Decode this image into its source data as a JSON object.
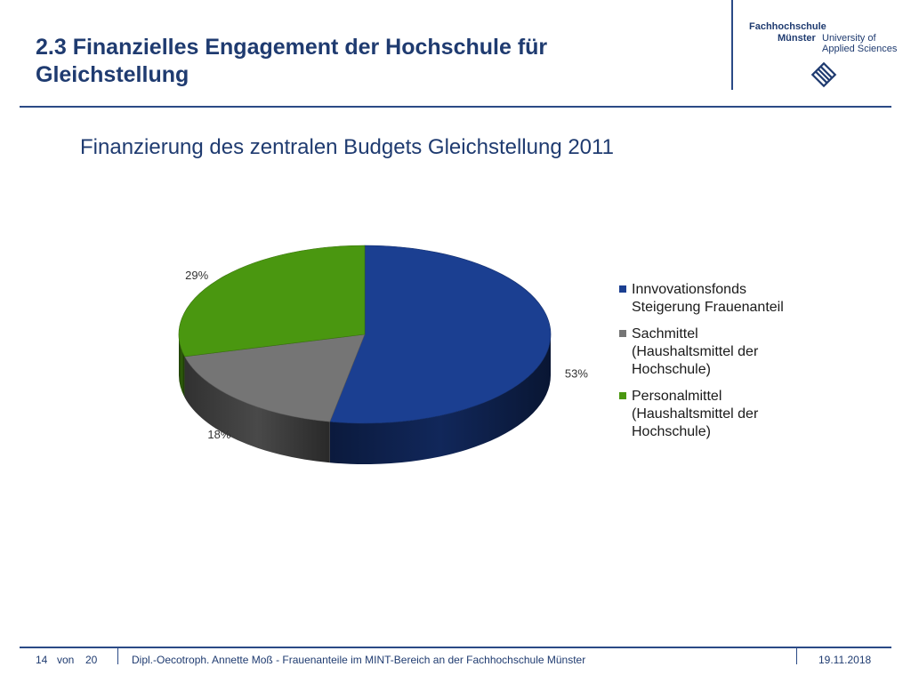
{
  "slide": {
    "title": "2.3 Finanzielles Engagement der Hochschule für Gleichstellung"
  },
  "logo": {
    "line1": "Fachhochschule",
    "line2_left": "Münster",
    "line2_right": "University of",
    "line3": "Applied Sciences",
    "icon": "fh-muenster-logo-icon"
  },
  "colors": {
    "brand_blue": "#1f3b70",
    "innovation": "#1b3f91",
    "sach": "#757575",
    "personal": "#4a9710"
  },
  "chart_data": {
    "type": "pie",
    "title": "Finanzierung des zentralen Budgets Gleichstellung 2011",
    "legend_position": "right",
    "slices": [
      {
        "label": "Innvovationsfonds Steigerung Frauenanteil",
        "value": 53,
        "value_label": "53%",
        "color": "#1b3f91"
      },
      {
        "label": "Sachmittel (Haushaltsmittel der Hochschule)",
        "value": 18,
        "value_label": "18%",
        "color": "#757575"
      },
      {
        "label": "Personalmittel (Haushaltsmittel der Hochschule)",
        "value": 29,
        "value_label": "29%",
        "color": "#4a9710"
      }
    ]
  },
  "footer": {
    "page": "14",
    "of": "von",
    "total": "20",
    "text": "Dipl.-Oecotroph. Annette Moß - Frauenanteile im MINT-Bereich an der Fachhochschule Münster",
    "date": "19.11.2018"
  }
}
